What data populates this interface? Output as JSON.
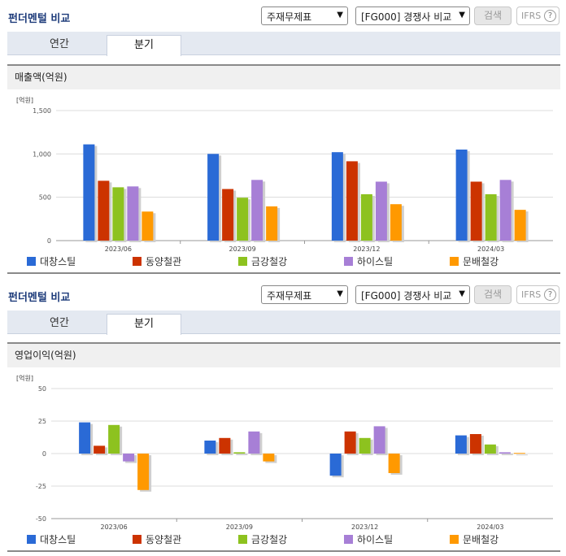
{
  "sections": [
    {
      "title": "펀더멘털 비교",
      "selects": [
        "주재무제표",
        "[FG000] 경쟁사 비교"
      ],
      "search_label": "검색",
      "ifrs_label": "IFRS",
      "help_glyph": "?",
      "tabs": [
        {
          "label": "연간",
          "active": false
        },
        {
          "label": "분기",
          "active": true
        }
      ],
      "panel_title": "매출액(억원)"
    },
    {
      "title": "펀더멘털 비교",
      "selects": [
        "주재무제표",
        "[FG000] 경쟁사 비교"
      ],
      "search_label": "검색",
      "ifrs_label": "IFRS",
      "help_glyph": "?",
      "tabs": [
        {
          "label": "연간",
          "active": false
        },
        {
          "label": "분기",
          "active": true
        }
      ],
      "panel_title": "영업이익(억원)"
    }
  ],
  "icons": {
    "select_arrow": "chevron-down-icon",
    "help": "question-circle-icon"
  },
  "chart_data": [
    {
      "type": "bar",
      "unit_label": "[억원]",
      "categories": [
        "2023/06",
        "2023/09",
        "2023/12",
        "2024/03"
      ],
      "ylim": [
        0,
        1500
      ],
      "yticks": [
        0,
        500,
        1000,
        1500
      ],
      "ytick_labels": [
        "0",
        "500",
        "1,000",
        "1,500"
      ],
      "grid": true,
      "legend_position": "bottom",
      "series": [
        {
          "name": "대창스틸",
          "color": "#2a6ad6",
          "values": [
            1110,
            1000,
            1020,
            1050
          ]
        },
        {
          "name": "동양철관",
          "color": "#cc3300",
          "values": [
            690,
            595,
            915,
            680
          ]
        },
        {
          "name": "금강철강",
          "color": "#8dc21f",
          "values": [
            615,
            495,
            535,
            535
          ]
        },
        {
          "name": "하이스틸",
          "color": "#a77fd6",
          "values": [
            625,
            700,
            680,
            700
          ]
        },
        {
          "name": "문배철강",
          "color": "#ff9900",
          "values": [
            335,
            395,
            420,
            355
          ]
        }
      ]
    },
    {
      "type": "bar",
      "unit_label": "[억원]",
      "categories": [
        "2023/06",
        "2023/09",
        "2023/12",
        "2024/03"
      ],
      "ylim": [
        -50,
        50
      ],
      "yticks": [
        -50,
        -25,
        0,
        25,
        50
      ],
      "ytick_labels": [
        "-50",
        "-25",
        "0",
        "25",
        "50"
      ],
      "grid": true,
      "legend_position": "bottom",
      "series": [
        {
          "name": "대창스틸",
          "color": "#2a6ad6",
          "values": [
            24,
            10,
            -17,
            14
          ]
        },
        {
          "name": "동양철관",
          "color": "#cc3300",
          "values": [
            6,
            12,
            17,
            15
          ]
        },
        {
          "name": "금강철강",
          "color": "#8dc21f",
          "values": [
            22,
            1,
            12,
            7
          ]
        },
        {
          "name": "하이스틸",
          "color": "#a77fd6",
          "values": [
            -6,
            17,
            21,
            1
          ]
        },
        {
          "name": "문배철강",
          "color": "#ff9900",
          "values": [
            -28,
            -6,
            -15,
            0.5
          ]
        }
      ]
    }
  ]
}
